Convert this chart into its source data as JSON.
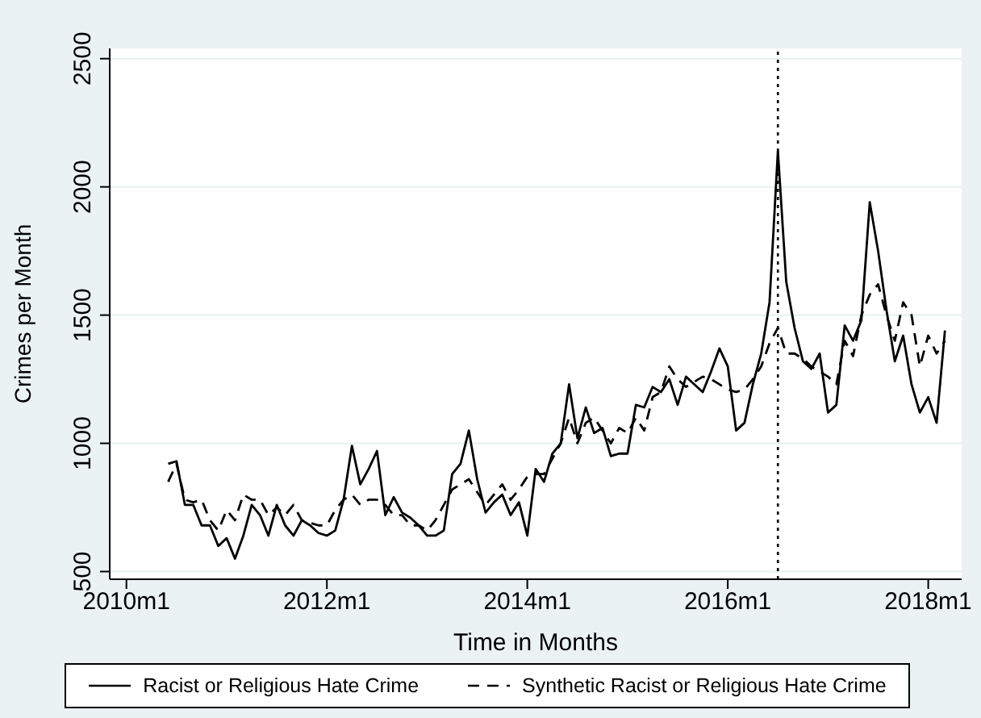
{
  "chart_data": {
    "type": "line",
    "xlabel": "Time in Months",
    "ylabel": "Crimes per Month",
    "x": [
      "2010-06",
      "2010-07",
      "2010-08",
      "2010-09",
      "2010-10",
      "2010-11",
      "2010-12",
      "2011-01",
      "2011-02",
      "2011-03",
      "2011-04",
      "2011-05",
      "2011-06",
      "2011-07",
      "2011-08",
      "2011-09",
      "2011-10",
      "2011-11",
      "2011-12",
      "2012-01",
      "2012-02",
      "2012-03",
      "2012-04",
      "2012-05",
      "2012-06",
      "2012-07",
      "2012-08",
      "2012-09",
      "2012-10",
      "2012-11",
      "2012-12",
      "2013-01",
      "2013-02",
      "2013-03",
      "2013-04",
      "2013-05",
      "2013-06",
      "2013-07",
      "2013-08",
      "2013-09",
      "2013-10",
      "2013-11",
      "2013-12",
      "2014-01",
      "2014-02",
      "2014-03",
      "2014-04",
      "2014-05",
      "2014-06",
      "2014-07",
      "2014-08",
      "2014-09",
      "2014-10",
      "2014-11",
      "2014-12",
      "2015-01",
      "2015-02",
      "2015-03",
      "2015-04",
      "2015-05",
      "2015-06",
      "2015-07",
      "2015-08",
      "2015-09",
      "2015-10",
      "2015-11",
      "2015-12",
      "2016-01",
      "2016-02",
      "2016-03",
      "2016-04",
      "2016-05",
      "2016-06",
      "2016-07",
      "2016-08",
      "2016-09",
      "2016-10",
      "2016-11",
      "2016-12",
      "2017-01",
      "2017-02",
      "2017-03",
      "2017-04",
      "2017-05",
      "2017-06",
      "2017-07",
      "2017-08",
      "2017-09",
      "2017-10",
      "2017-11",
      "2017-12",
      "2018-01",
      "2018-02",
      "2018-03"
    ],
    "series": [
      {
        "name": "Racist or Religious Hate Crime",
        "color": "#000000",
        "line_style": "solid",
        "values": [
          920,
          930,
          760,
          760,
          680,
          680,
          600,
          630,
          550,
          640,
          760,
          720,
          640,
          760,
          680,
          640,
          700,
          680,
          650,
          640,
          660,
          780,
          990,
          840,
          900,
          970,
          720,
          790,
          730,
          710,
          680,
          640,
          640,
          660,
          880,
          920,
          1050,
          860,
          730,
          770,
          800,
          720,
          770,
          640,
          900,
          850,
          960,
          1000,
          1230,
          1020,
          1140,
          1040,
          1060,
          950,
          960,
          960,
          1150,
          1140,
          1220,
          1200,
          1250,
          1150,
          1260,
          1230,
          1200,
          1280,
          1370,
          1300,
          1050,
          1080,
          1230,
          1350,
          1550,
          2140,
          1630,
          1450,
          1320,
          1290,
          1350,
          1120,
          1150,
          1460,
          1400,
          1480,
          1940,
          1750,
          1520,
          1320,
          1420,
          1230,
          1120,
          1180,
          1080,
          1440
        ]
      },
      {
        "name": "Synthetic Racist or Religious Hate Crime",
        "color": "#000000",
        "line_style": "dashed",
        "values": [
          850,
          920,
          780,
          770,
          780,
          700,
          660,
          740,
          700,
          800,
          780,
          780,
          720,
          750,
          720,
          760,
          700,
          690,
          680,
          680,
          740,
          780,
          800,
          760,
          780,
          780,
          760,
          720,
          720,
          680,
          680,
          660,
          700,
          760,
          820,
          840,
          860,
          810,
          760,
          800,
          840,
          780,
          820,
          870,
          880,
          880,
          940,
          1000,
          1100,
          1000,
          1080,
          1100,
          1050,
          1000,
          1060,
          1040,
          1100,
          1050,
          1180,
          1200,
          1300,
          1250,
          1220,
          1240,
          1260,
          1250,
          1230,
          1210,
          1200,
          1210,
          1250,
          1300,
          1390,
          1450,
          1350,
          1350,
          1330,
          1300,
          1280,
          1260,
          1230,
          1400,
          1340,
          1500,
          1580,
          1620,
          1500,
          1400,
          1550,
          1500,
          1300,
          1420,
          1350,
          1400
        ]
      }
    ],
    "xlim": [
      "2009-11",
      "2018-05"
    ],
    "xticks": [
      {
        "value": "2010-01",
        "label": "2010m1"
      },
      {
        "value": "2012-01",
        "label": "2012m1"
      },
      {
        "value": "2014-01",
        "label": "2014m1"
      },
      {
        "value": "2016-01",
        "label": "2016m1"
      },
      {
        "value": "2018-01",
        "label": "2018m1"
      }
    ],
    "ylim": [
      470,
      2540
    ],
    "yticks": [
      500,
      1000,
      1500,
      2000,
      2500
    ],
    "grid": "y",
    "legend": "bottom",
    "marker": "none",
    "ref_lines": [
      {
        "axis": "x",
        "value": "2016-07",
        "line_style": "dotted",
        "color": "#000000"
      }
    ]
  }
}
